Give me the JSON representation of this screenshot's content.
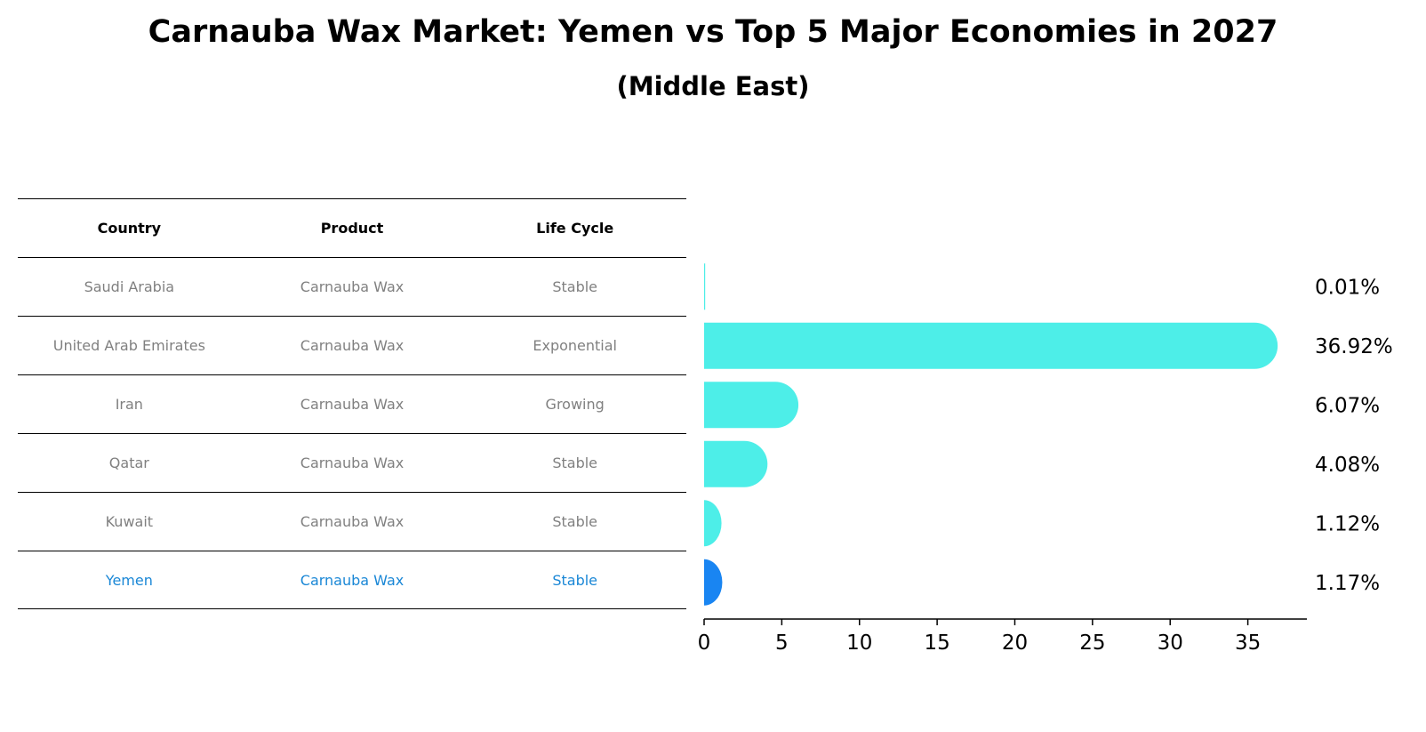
{
  "header": {
    "title": "Carnauba Wax Market: Yemen vs Top 5 Major Economies in 2027",
    "subtitle": "(Middle East)"
  },
  "table": {
    "columns": [
      "Country",
      "Product",
      "Life Cycle"
    ],
    "rows": [
      {
        "country": "Saudi Arabia",
        "product": "Carnauba Wax",
        "life_cycle": "Stable"
      },
      {
        "country": "United Arab Emirates",
        "product": "Carnauba Wax",
        "life_cycle": "Exponential"
      },
      {
        "country": "Iran",
        "product": "Carnauba Wax",
        "life_cycle": "Growing"
      },
      {
        "country": "Qatar",
        "product": "Carnauba Wax",
        "life_cycle": "Stable"
      },
      {
        "country": "Kuwait",
        "product": "Carnauba Wax",
        "life_cycle": "Stable"
      },
      {
        "country": "Yemen",
        "product": "Carnauba Wax",
        "life_cycle": "Stable"
      }
    ],
    "highlight_row": "Yemen"
  },
  "chart_data": {
    "type": "bar",
    "orientation": "horizontal",
    "title": "Carnauba Wax Market: Yemen vs Top 5 Major Economies in 2027",
    "subtitle": "(Middle East)",
    "categories": [
      "Saudi Arabia",
      "United Arab Emirates",
      "Iran",
      "Qatar",
      "Kuwait",
      "Yemen"
    ],
    "values": [
      0.01,
      36.92,
      6.07,
      4.08,
      1.12,
      1.17
    ],
    "value_labels": [
      "0.01%",
      "36.92%",
      "6.07%",
      "4.08%",
      "1.12%",
      "1.17%"
    ],
    "xlim": [
      0,
      38.8
    ],
    "xticks": [
      0,
      5,
      10,
      15,
      20,
      25,
      30,
      35
    ],
    "xtick_labels": [
      "0",
      "5",
      "10",
      "15",
      "20",
      "25",
      "30",
      "35"
    ],
    "xlabel": "",
    "ylabel": "",
    "grid": false,
    "colors": {
      "default": "#4deee8",
      "highlight": "#1985f2"
    },
    "highlight_category": "Yemen"
  }
}
